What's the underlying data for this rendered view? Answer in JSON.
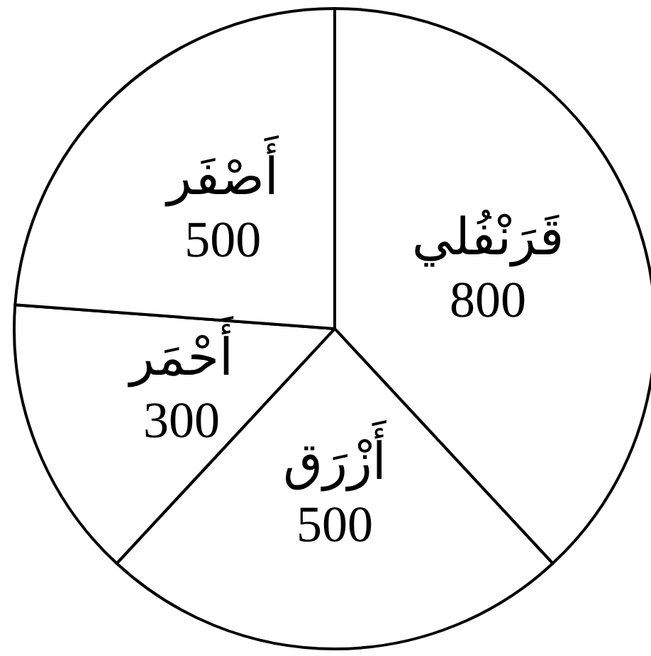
{
  "chart_data": {
    "type": "pie",
    "categories": [
      "قَرَنْفُلي",
      "أَزْرَق",
      "أَحْمَر",
      "أَصْفَر"
    ],
    "values": [
      800,
      500,
      300,
      500
    ],
    "colors": [
      "#ffffff",
      "#ffffff",
      "#ffffff",
      "#ffffff"
    ],
    "data_labels": true,
    "legend": false
  }
}
